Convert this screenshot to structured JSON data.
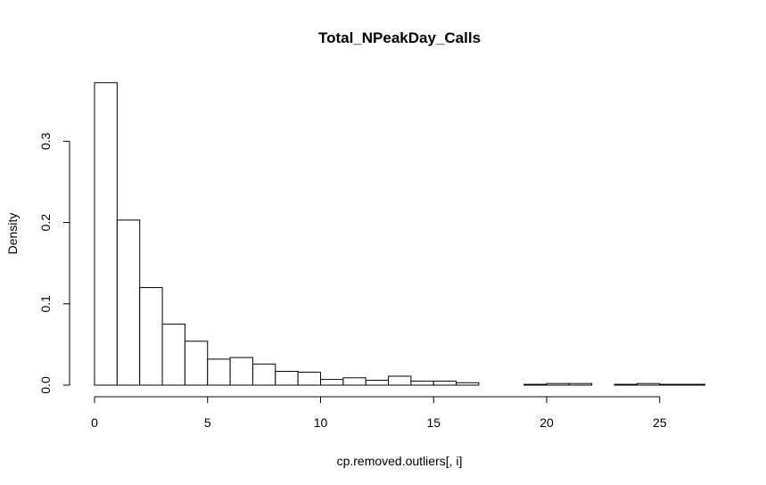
{
  "chart_data": {
    "type": "bar",
    "subtype": "histogram",
    "title": "Total_NPeakDay_Calls",
    "xlabel": "cp.removed.outliers[, i]",
    "ylabel": "Density",
    "xlim": [
      0,
      27
    ],
    "ylim": [
      0,
      0.37
    ],
    "x_ticks": [
      0,
      5,
      10,
      15,
      20,
      25
    ],
    "y_ticks": [
      0.0,
      0.1,
      0.2,
      0.3
    ],
    "x_tick_labels": [
      "0",
      "5",
      "10",
      "15",
      "20",
      "25"
    ],
    "y_tick_labels": [
      "0.0",
      "0.1",
      "0.2",
      "0.3"
    ],
    "grid": false,
    "bin_width": 1,
    "bin_edges": [
      0,
      1,
      2,
      3,
      4,
      5,
      6,
      7,
      8,
      9,
      10,
      11,
      12,
      13,
      14,
      15,
      16,
      17,
      18,
      19,
      20,
      21,
      22,
      23,
      24,
      25,
      26,
      27
    ],
    "values": [
      0.372,
      0.203,
      0.12,
      0.075,
      0.054,
      0.032,
      0.034,
      0.026,
      0.017,
      0.016,
      0.007,
      0.009,
      0.006,
      0.011,
      0.005,
      0.005,
      0.003,
      0.0,
      0.0,
      0.001,
      0.002,
      0.002,
      0.0,
      0.001,
      0.002,
      0.001,
      0.001
    ],
    "fill_color": "#ffffff",
    "stroke_color": "#000000"
  }
}
